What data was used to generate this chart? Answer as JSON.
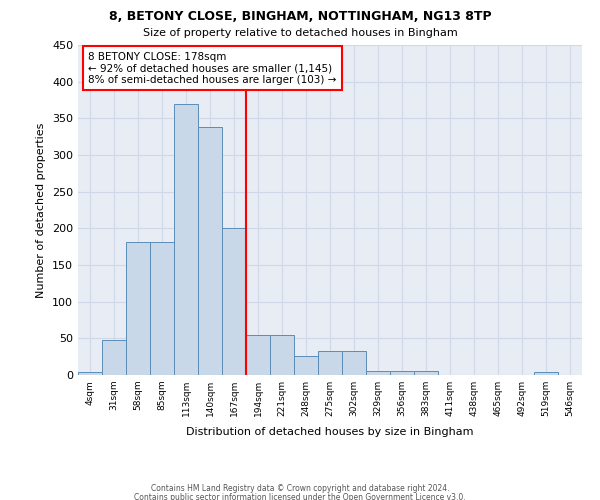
{
  "title1": "8, BETONY CLOSE, BINGHAM, NOTTINGHAM, NG13 8TP",
  "title2": "Size of property relative to detached houses in Bingham",
  "xlabel": "Distribution of detached houses by size in Bingham",
  "ylabel": "Number of detached properties",
  "bin_labels": [
    "4sqm",
    "31sqm",
    "58sqm",
    "85sqm",
    "113sqm",
    "140sqm",
    "167sqm",
    "194sqm",
    "221sqm",
    "248sqm",
    "275sqm",
    "302sqm",
    "329sqm",
    "356sqm",
    "383sqm",
    "411sqm",
    "438sqm",
    "465sqm",
    "492sqm",
    "519sqm",
    "546sqm"
  ],
  "bar_values": [
    4,
    48,
    181,
    181,
    370,
    338,
    200,
    54,
    54,
    26,
    33,
    33,
    5,
    5,
    5,
    0,
    0,
    0,
    0,
    4,
    0
  ],
  "bar_color": "#c8d8e8",
  "bar_edge_color": "#5b8db8",
  "grid_color": "#d0d8e8",
  "bg_color": "#e8ecf4",
  "property_line_x": 6.5,
  "annotation_line1": "8 BETONY CLOSE: 178sqm",
  "annotation_line2": "← 92% of detached houses are smaller (1,145)",
  "annotation_line3": "8% of semi-detached houses are larger (103) →",
  "footer1": "Contains HM Land Registry data © Crown copyright and database right 2024.",
  "footer2": "Contains public sector information licensed under the Open Government Licence v3.0.",
  "ylim": [
    0,
    450
  ],
  "yticks": [
    0,
    50,
    100,
    150,
    200,
    250,
    300,
    350,
    400,
    450
  ]
}
